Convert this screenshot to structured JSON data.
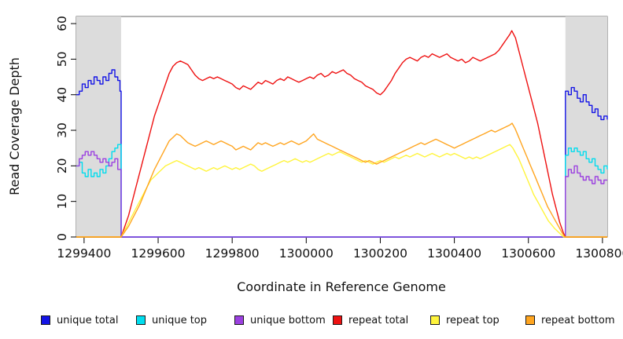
{
  "chart_data": {
    "type": "line",
    "title": "",
    "xlabel": "Coordinate in Reference Genome",
    "ylabel": "Read Coverage Depth",
    "xlim": [
      1299379,
      1300813
    ],
    "ylim": [
      0,
      62
    ],
    "x_ticks": [
      1299400,
      1299600,
      1299800,
      1300000,
      1300200,
      1300400,
      1300600,
      1300800
    ],
    "y_ticks": [
      0,
      10,
      20,
      30,
      40,
      50,
      60
    ],
    "grid": false,
    "legend_position": "bottom",
    "frame_color": "#666666",
    "axis_color": "#000000",
    "shaded_regions": [
      {
        "name": "left-flank",
        "x_start": 1299379,
        "x_end": 1299500,
        "color": "#DCDCDC"
      },
      {
        "name": "right-flank",
        "x_start": 1300700,
        "x_end": 1300813,
        "color": "#DCDCDC"
      }
    ],
    "series": [
      {
        "name": "unique total",
        "color": "#1414E6",
        "step": true,
        "points": [
          1299379,
          40,
          1299387,
          41,
          1299395,
          43,
          1299403,
          42,
          1299411,
          44,
          1299419,
          43,
          1299427,
          45,
          1299435,
          44,
          1299443,
          43,
          1299451,
          45,
          1299459,
          44,
          1299467,
          46,
          1299475,
          47,
          1299483,
          45,
          1299491,
          44,
          1299497,
          41,
          1299500,
          41,
          1299500,
          0,
          1300700,
          0,
          1300700,
          41,
          1300708,
          40,
          1300716,
          42,
          1300724,
          41,
          1300732,
          39,
          1300740,
          38,
          1300748,
          40,
          1300756,
          38,
          1300764,
          37,
          1300772,
          35,
          1300780,
          36,
          1300788,
          34,
          1300796,
          33,
          1300804,
          34,
          1300813,
          33
        ]
      },
      {
        "name": "unique top",
        "color": "#00DDEE",
        "step": true,
        "points": [
          1299379,
          20,
          1299387,
          21,
          1299395,
          18,
          1299403,
          17,
          1299411,
          19,
          1299419,
          17,
          1299427,
          18,
          1299435,
          17,
          1299443,
          19,
          1299451,
          18,
          1299459,
          20,
          1299467,
          22,
          1299475,
          24,
          1299483,
          25,
          1299491,
          26,
          1299500,
          25,
          1299500,
          0,
          1300700,
          0,
          1300700,
          23,
          1300708,
          25,
          1300716,
          24,
          1300724,
          25,
          1300732,
          24,
          1300740,
          23,
          1300748,
          24,
          1300756,
          22,
          1300764,
          21,
          1300772,
          22,
          1300780,
          20,
          1300788,
          19,
          1300796,
          18,
          1300804,
          20,
          1300813,
          19
        ]
      },
      {
        "name": "unique bottom",
        "color": "#9B40E0",
        "step": true,
        "points": [
          1299379,
          20,
          1299387,
          22,
          1299395,
          23,
          1299403,
          24,
          1299411,
          23,
          1299419,
          24,
          1299427,
          23,
          1299435,
          22,
          1299443,
          21,
          1299451,
          22,
          1299459,
          21,
          1299467,
          20,
          1299475,
          21,
          1299483,
          22,
          1299491,
          19,
          1299500,
          16,
          1299500,
          0,
          1300700,
          0,
          1300700,
          17,
          1300708,
          19,
          1300716,
          18,
          1300724,
          20,
          1300732,
          18,
          1300740,
          17,
          1300748,
          16,
          1300756,
          17,
          1300764,
          16,
          1300772,
          15,
          1300780,
          17,
          1300788,
          16,
          1300796,
          15,
          1300804,
          16,
          1300813,
          16
        ]
      },
      {
        "name": "repeat total",
        "color": "#EE1111",
        "step": false,
        "points": [
          1299379,
          0,
          1299500,
          0,
          1299510,
          3,
          1299520,
          6,
          1299530,
          10,
          1299540,
          14,
          1299550,
          18,
          1299560,
          22,
          1299570,
          26,
          1299580,
          30,
          1299590,
          34,
          1299600,
          37,
          1299610,
          40,
          1299620,
          43,
          1299630,
          46,
          1299640,
          48,
          1299650,
          49,
          1299660,
          49.5,
          1299670,
          49,
          1299680,
          48.5,
          1299690,
          47,
          1299700,
          45.5,
          1299710,
          44.5,
          1299720,
          44,
          1299730,
          44.5,
          1299740,
          45,
          1299750,
          44.5,
          1299760,
          45,
          1299770,
          44.5,
          1299780,
          44,
          1299790,
          43.5,
          1299800,
          43,
          1299810,
          42,
          1299820,
          41.5,
          1299830,
          42.5,
          1299840,
          42,
          1299850,
          41.5,
          1299860,
          42.5,
          1299870,
          43.5,
          1299880,
          43,
          1299890,
          44,
          1299900,
          43.5,
          1299910,
          43,
          1299920,
          44,
          1299930,
          44.5,
          1299940,
          44,
          1299950,
          45,
          1299960,
          44.5,
          1299970,
          44,
          1299980,
          43.5,
          1299990,
          44,
          1300000,
          44.5,
          1300010,
          45,
          1300020,
          44.5,
          1300030,
          45.5,
          1300040,
          46,
          1300050,
          45,
          1300060,
          45.5,
          1300070,
          46.5,
          1300080,
          46,
          1300090,
          46.5,
          1300100,
          47,
          1300110,
          46,
          1300120,
          45.5,
          1300130,
          44.5,
          1300140,
          44,
          1300150,
          43.5,
          1300160,
          42.5,
          1300170,
          42,
          1300180,
          41.5,
          1300190,
          40.5,
          1300200,
          40,
          1300210,
          41,
          1300220,
          42.5,
          1300230,
          44,
          1300240,
          46,
          1300250,
          47.5,
          1300260,
          49,
          1300270,
          50,
          1300280,
          50.5,
          1300290,
          50,
          1300300,
          49.5,
          1300310,
          50.5,
          1300320,
          51,
          1300330,
          50.5,
          1300340,
          51.5,
          1300350,
          51,
          1300360,
          50.5,
          1300370,
          51,
          1300380,
          51.5,
          1300390,
          50.5,
          1300400,
          50,
          1300410,
          49.5,
          1300420,
          50,
          1300430,
          49,
          1300440,
          49.5,
          1300450,
          50.5,
          1300460,
          50,
          1300470,
          49.5,
          1300480,
          50,
          1300490,
          50.5,
          1300500,
          51,
          1300510,
          51.5,
          1300520,
          52.5,
          1300530,
          54,
          1300540,
          55.5,
          1300550,
          57,
          1300555,
          58,
          1300565,
          56,
          1300575,
          52,
          1300585,
          48,
          1300595,
          44,
          1300605,
          40,
          1300615,
          36,
          1300625,
          32,
          1300635,
          27,
          1300645,
          22,
          1300655,
          17,
          1300665,
          12,
          1300675,
          8,
          1300685,
          4,
          1300695,
          1,
          1300700,
          0,
          1300813,
          0
        ]
      },
      {
        "name": "repeat top",
        "color": "#FFF43C",
        "step": false,
        "points": [
          1299379,
          0,
          1299500,
          0,
          1299510,
          2,
          1299520,
          4,
          1299530,
          6,
          1299540,
          8,
          1299550,
          10,
          1299560,
          12,
          1299570,
          14,
          1299580,
          16,
          1299590,
          17,
          1299600,
          18,
          1299610,
          19,
          1299620,
          20,
          1299630,
          20.5,
          1299640,
          21,
          1299650,
          21.5,
          1299660,
          21,
          1299670,
          20.5,
          1299680,
          20,
          1299690,
          19.5,
          1299700,
          19,
          1299710,
          19.5,
          1299720,
          19,
          1299730,
          18.5,
          1299740,
          19,
          1299750,
          19.5,
          1299760,
          19,
          1299770,
          19.5,
          1299780,
          20,
          1299790,
          19.5,
          1299800,
          19,
          1299810,
          19.5,
          1299820,
          19,
          1299830,
          19.5,
          1299840,
          20,
          1299850,
          20.5,
          1299860,
          20,
          1299870,
          19,
          1299880,
          18.5,
          1299890,
          19,
          1299900,
          19.5,
          1299910,
          20,
          1299920,
          20.5,
          1299930,
          21,
          1299940,
          21.5,
          1299950,
          21,
          1299960,
          21.5,
          1299970,
          22,
          1299980,
          21.5,
          1299990,
          21,
          1300000,
          21.5,
          1300010,
          21,
          1300020,
          21.5,
          1300030,
          22,
          1300040,
          22.5,
          1300050,
          23,
          1300060,
          23.5,
          1300070,
          23,
          1300080,
          23.5,
          1300090,
          24,
          1300100,
          23.5,
          1300110,
          23,
          1300120,
          22.5,
          1300130,
          22,
          1300140,
          21.5,
          1300150,
          21,
          1300160,
          21.5,
          1300170,
          21,
          1300180,
          20.5,
          1300190,
          21,
          1300200,
          21.5,
          1300210,
          21,
          1300220,
          21.5,
          1300230,
          22,
          1300240,
          22.5,
          1300250,
          22,
          1300260,
          22.5,
          1300270,
          23,
          1300280,
          22.5,
          1300290,
          23,
          1300300,
          23.5,
          1300310,
          23,
          1300320,
          22.5,
          1300330,
          23,
          1300340,
          23.5,
          1300350,
          23,
          1300360,
          22.5,
          1300370,
          23,
          1300380,
          23.5,
          1300390,
          23,
          1300400,
          23.5,
          1300410,
          23,
          1300420,
          22.5,
          1300430,
          22,
          1300440,
          22.5,
          1300450,
          22,
          1300460,
          22.5,
          1300470,
          22,
          1300480,
          22.5,
          1300490,
          23,
          1300500,
          23.5,
          1300510,
          24,
          1300520,
          24.5,
          1300530,
          25,
          1300540,
          25.5,
          1300550,
          26,
          1300558,
          25,
          1300566,
          23.5,
          1300574,
          22,
          1300582,
          20,
          1300590,
          18,
          1300598,
          16,
          1300606,
          14,
          1300614,
          12,
          1300622,
          10.5,
          1300630,
          9,
          1300638,
          7.5,
          1300646,
          6,
          1300654,
          4.5,
          1300662,
          3.5,
          1300670,
          2.5,
          1300680,
          1.5,
          1300690,
          0.5,
          1300695,
          0,
          1300813,
          0
        ]
      },
      {
        "name": "repeat bottom",
        "color": "#FFA520",
        "step": false,
        "points": [
          1299379,
          0,
          1299500,
          0,
          1299510,
          1.5,
          1299520,
          3,
          1299530,
          5,
          1299540,
          7,
          1299550,
          9,
          1299560,
          11.5,
          1299570,
          14,
          1299580,
          16.5,
          1299590,
          19,
          1299600,
          21,
          1299610,
          23,
          1299620,
          25,
          1299630,
          27,
          1299640,
          28,
          1299650,
          29,
          1299660,
          28.5,
          1299670,
          27.5,
          1299680,
          26.5,
          1299690,
          26,
          1299700,
          25.5,
          1299710,
          26,
          1299720,
          26.5,
          1299730,
          27,
          1299740,
          26.5,
          1299750,
          26,
          1299760,
          26.5,
          1299770,
          27,
          1299780,
          26.5,
          1299790,
          26,
          1299800,
          25.5,
          1299810,
          24.5,
          1299820,
          25,
          1299830,
          25.5,
          1299840,
          25,
          1299850,
          24.5,
          1299860,
          25.5,
          1299870,
          26.5,
          1299880,
          26,
          1299890,
          26.5,
          1299900,
          26,
          1299910,
          25.5,
          1299920,
          26,
          1299930,
          26.5,
          1299940,
          26,
          1299950,
          26.5,
          1299960,
          27,
          1299970,
          26.5,
          1299980,
          26,
          1299990,
          26.5,
          1300000,
          27,
          1300010,
          28,
          1300020,
          29,
          1300030,
          27.5,
          1300040,
          27,
          1300050,
          26.5,
          1300060,
          26,
          1300070,
          25.5,
          1300080,
          25,
          1300090,
          24.5,
          1300100,
          24,
          1300110,
          23.5,
          1300120,
          23,
          1300130,
          22.5,
          1300140,
          22,
          1300150,
          21.5,
          1300160,
          21,
          1300170,
          21.5,
          1300180,
          21,
          1300190,
          20.5,
          1300200,
          21,
          1300210,
          21.5,
          1300220,
          22,
          1300230,
          22.5,
          1300240,
          23,
          1300250,
          23.5,
          1300260,
          24,
          1300270,
          24.5,
          1300280,
          25,
          1300290,
          25.5,
          1300300,
          26,
          1300310,
          26.5,
          1300320,
          26,
          1300330,
          26.5,
          1300340,
          27,
          1300350,
          27.5,
          1300360,
          27,
          1300370,
          26.5,
          1300380,
          26,
          1300390,
          25.5,
          1300400,
          25,
          1300410,
          25.5,
          1300420,
          26,
          1300430,
          26.5,
          1300440,
          27,
          1300450,
          27.5,
          1300460,
          28,
          1300470,
          28.5,
          1300480,
          29,
          1300490,
          29.5,
          1300500,
          30,
          1300510,
          29.5,
          1300520,
          30,
          1300530,
          30.5,
          1300540,
          31,
          1300550,
          31.5,
          1300556,
          32,
          1300564,
          30.5,
          1300572,
          28.5,
          1300580,
          26.5,
          1300588,
          24.5,
          1300596,
          22.5,
          1300604,
          20.5,
          1300612,
          18.5,
          1300620,
          16.5,
          1300628,
          14.5,
          1300636,
          12.5,
          1300644,
          10.5,
          1300652,
          8.5,
          1300660,
          7,
          1300668,
          5.5,
          1300676,
          4,
          1300684,
          2.5,
          1300692,
          1,
          1300698,
          0,
          1300813,
          0
        ]
      }
    ],
    "legend": [
      {
        "label": "unique total",
        "color": "#1414E6"
      },
      {
        "label": "unique top",
        "color": "#00DDEE"
      },
      {
        "label": "unique bottom",
        "color": "#9B40E0"
      },
      {
        "label": "repeat total",
        "color": "#EE1111"
      },
      {
        "label": "repeat top",
        "color": "#FFF43C"
      },
      {
        "label": "repeat bottom",
        "color": "#FFA520"
      }
    ]
  }
}
